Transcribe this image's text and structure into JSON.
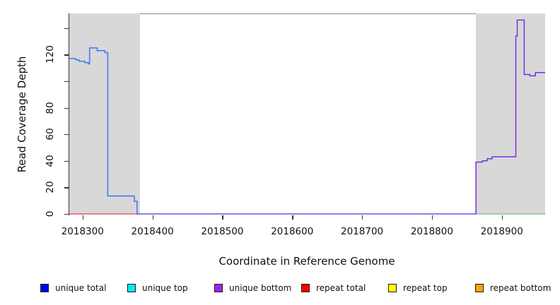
{
  "chart_data": {
    "type": "line",
    "title": "",
    "xlabel": "Coordinate in Reference Genome",
    "ylabel": "Read Coverage Depth",
    "xlim": [
      2018281,
      2018962
    ],
    "ylim": [
      0,
      151
    ],
    "grid": false,
    "x_ticks": [
      2018300,
      2018400,
      2018500,
      2018600,
      2018700,
      2018800,
      2018900
    ],
    "y_ticks": [
      {
        "v": 0,
        "label": "0"
      },
      {
        "v": 20,
        "label": "20"
      },
      {
        "v": 40,
        "label": "40"
      },
      {
        "v": 60,
        "label": "60"
      },
      {
        "v": 80,
        "label": "80"
      },
      {
        "v": 100,
        "label": ""
      },
      {
        "v": 120,
        "label": "120"
      },
      {
        "v": 140,
        "label": ""
      }
    ],
    "shaded_regions": [
      {
        "x0": 2018281,
        "x1": 2018382
      },
      {
        "x0": 2018863,
        "x1": 2018962
      }
    ],
    "series": [
      {
        "name": "repeat-total-baseline-left",
        "color": "#f25d6e",
        "points": [
          [
            2018281,
            0
          ],
          [
            2018380,
            0
          ]
        ]
      },
      {
        "name": "baseline-right-green",
        "color": "#8ccc96",
        "points": [
          [
            2018863,
            0
          ],
          [
            2018962,
            0
          ]
        ]
      },
      {
        "name": "baseline-middle",
        "color": "#6556f0",
        "points": [
          [
            2018380,
            0
          ],
          [
            2018863,
            0
          ]
        ]
      },
      {
        "name": "unique-total-left",
        "color": "#3d74f0",
        "points": [
          [
            2018281,
            117
          ],
          [
            2018290,
            117
          ],
          [
            2018290,
            116
          ],
          [
            2018295,
            116
          ],
          [
            2018295,
            115
          ],
          [
            2018303,
            115
          ],
          [
            2018303,
            114
          ],
          [
            2018308,
            114
          ],
          [
            2018308,
            113
          ],
          [
            2018310,
            113
          ],
          [
            2018310,
            125
          ],
          [
            2018321,
            125
          ],
          [
            2018321,
            123
          ],
          [
            2018332,
            123
          ],
          [
            2018332,
            121.5
          ],
          [
            2018336,
            121.5
          ],
          [
            2018336,
            13.5
          ],
          [
            2018374,
            13.5
          ],
          [
            2018374,
            9.5
          ],
          [
            2018378,
            9.5
          ],
          [
            2018378,
            0
          ],
          [
            2018382,
            0
          ]
        ]
      },
      {
        "name": "unique-bottom-right",
        "color": "#7231e6",
        "points": [
          [
            2018863,
            0
          ],
          [
            2018863,
            39
          ],
          [
            2018872,
            39
          ],
          [
            2018872,
            40
          ],
          [
            2018879,
            40
          ],
          [
            2018879,
            41.5
          ],
          [
            2018886,
            41.5
          ],
          [
            2018886,
            43
          ],
          [
            2018920,
            43
          ],
          [
            2018920,
            134
          ],
          [
            2018922,
            134
          ],
          [
            2018922,
            146
          ],
          [
            2018932,
            146
          ],
          [
            2018932,
            105
          ],
          [
            2018940,
            105
          ],
          [
            2018940,
            104
          ],
          [
            2018948,
            104
          ],
          [
            2018948,
            106.5
          ],
          [
            2018962,
            106.5
          ]
        ]
      }
    ],
    "legend_position": "bottom"
  },
  "legend": {
    "items": [
      {
        "label": "unique total",
        "color": "#0000ff"
      },
      {
        "label": "unique top",
        "color": "#00eeee"
      },
      {
        "label": "unique bottom",
        "color": "#a020f0"
      },
      {
        "label": "repeat total",
        "color": "#ff0000"
      },
      {
        "label": "repeat top",
        "color": "#ffff00"
      },
      {
        "label": "repeat bottom",
        "color": "#ffa500"
      }
    ]
  }
}
